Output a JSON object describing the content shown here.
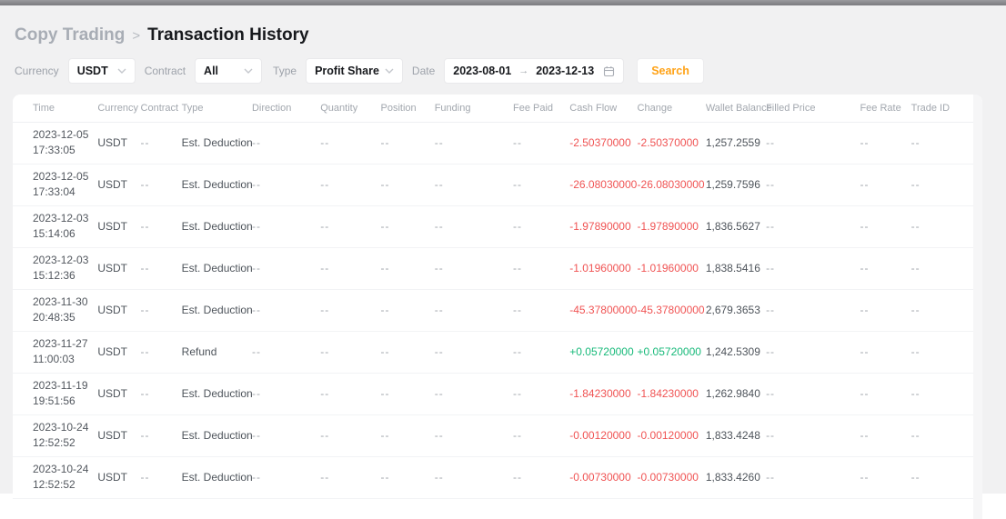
{
  "breadcrumb": {
    "parent": "Copy Trading",
    "separator": ">",
    "current": "Transaction History"
  },
  "filters": {
    "currency": {
      "label": "Currency",
      "value": "USDT"
    },
    "contract": {
      "label": "Contract",
      "value": "All"
    },
    "type": {
      "label": "Type",
      "value": "Profit Share"
    },
    "date": {
      "label": "Date",
      "start": "2023-08-01",
      "arrow": "→",
      "end": "2023-12-13"
    },
    "search_label": "Search"
  },
  "table": {
    "columns": [
      "Time",
      "Currency",
      "Contract",
      "Type",
      "Direction",
      "Quantity",
      "Position",
      "Funding",
      "Fee Paid",
      "Cash Flow",
      "Change",
      "Wallet Balance",
      "Filled Price",
      "Fee Rate",
      "Trade ID"
    ],
    "rows": [
      {
        "date": "2023-12-05",
        "clock": "17:33:05",
        "currency": "USDT",
        "contract": "--",
        "type": "Est. Deduction",
        "direction": "--",
        "quantity": "--",
        "position": "--",
        "funding": "--",
        "fee_paid": "--",
        "cash_flow": "-2.50370000",
        "change": "-2.50370000",
        "wallet_balance": "1,257.2559",
        "filled_price": "--",
        "fee_rate": "--",
        "trade_id": "--",
        "flow": "negative"
      },
      {
        "date": "2023-12-05",
        "clock": "17:33:04",
        "currency": "USDT",
        "contract": "--",
        "type": "Est. Deduction",
        "direction": "--",
        "quantity": "--",
        "position": "--",
        "funding": "--",
        "fee_paid": "--",
        "cash_flow": "-26.08030000",
        "change": "-26.08030000",
        "wallet_balance": "1,259.7596",
        "filled_price": "--",
        "fee_rate": "--",
        "trade_id": "--",
        "flow": "negative"
      },
      {
        "date": "2023-12-03",
        "clock": "15:14:06",
        "currency": "USDT",
        "contract": "--",
        "type": "Est. Deduction",
        "direction": "--",
        "quantity": "--",
        "position": "--",
        "funding": "--",
        "fee_paid": "--",
        "cash_flow": "-1.97890000",
        "change": "-1.97890000",
        "wallet_balance": "1,836.5627",
        "filled_price": "--",
        "fee_rate": "--",
        "trade_id": "--",
        "flow": "negative"
      },
      {
        "date": "2023-12-03",
        "clock": "15:12:36",
        "currency": "USDT",
        "contract": "--",
        "type": "Est. Deduction",
        "direction": "--",
        "quantity": "--",
        "position": "--",
        "funding": "--",
        "fee_paid": "--",
        "cash_flow": "-1.01960000",
        "change": "-1.01960000",
        "wallet_balance": "1,838.5416",
        "filled_price": "--",
        "fee_rate": "--",
        "trade_id": "--",
        "flow": "negative"
      },
      {
        "date": "2023-11-30",
        "clock": "20:48:35",
        "currency": "USDT",
        "contract": "--",
        "type": "Est. Deduction",
        "direction": "--",
        "quantity": "--",
        "position": "--",
        "funding": "--",
        "fee_paid": "--",
        "cash_flow": "-45.37800000",
        "change": "-45.37800000",
        "wallet_balance": "2,679.3653",
        "filled_price": "--",
        "fee_rate": "--",
        "trade_id": "--",
        "flow": "negative"
      },
      {
        "date": "2023-11-27",
        "clock": "11:00:03",
        "currency": "USDT",
        "contract": "--",
        "type": "Refund",
        "direction": "--",
        "quantity": "--",
        "position": "--",
        "funding": "--",
        "fee_paid": "--",
        "cash_flow": "+0.05720000",
        "change": "+0.05720000",
        "wallet_balance": "1,242.5309",
        "filled_price": "--",
        "fee_rate": "--",
        "trade_id": "--",
        "flow": "positive"
      },
      {
        "date": "2023-11-19",
        "clock": "19:51:56",
        "currency": "USDT",
        "contract": "--",
        "type": "Est. Deduction",
        "direction": "--",
        "quantity": "--",
        "position": "--",
        "funding": "--",
        "fee_paid": "--",
        "cash_flow": "-1.84230000",
        "change": "-1.84230000",
        "wallet_balance": "1,262.9840",
        "filled_price": "--",
        "fee_rate": "--",
        "trade_id": "--",
        "flow": "negative"
      },
      {
        "date": "2023-10-24",
        "clock": "12:52:52",
        "currency": "USDT",
        "contract": "--",
        "type": "Est. Deduction",
        "direction": "--",
        "quantity": "--",
        "position": "--",
        "funding": "--",
        "fee_paid": "--",
        "cash_flow": "-0.00120000",
        "change": "-0.00120000",
        "wallet_balance": "1,833.4248",
        "filled_price": "--",
        "fee_rate": "--",
        "trade_id": "--",
        "flow": "negative"
      },
      {
        "date": "2023-10-24",
        "clock": "12:52:52",
        "currency": "USDT",
        "contract": "--",
        "type": "Est. Deduction",
        "direction": "--",
        "quantity": "--",
        "position": "--",
        "funding": "--",
        "fee_paid": "--",
        "cash_flow": "-0.00730000",
        "change": "-0.00730000",
        "wallet_balance": "1,833.4260",
        "filled_price": "--",
        "fee_rate": "--",
        "trade_id": "--",
        "flow": "negative"
      }
    ]
  },
  "colors": {
    "accent_orange": "#ffa216",
    "negative_red": "#f05454",
    "positive_green": "#16b979"
  }
}
